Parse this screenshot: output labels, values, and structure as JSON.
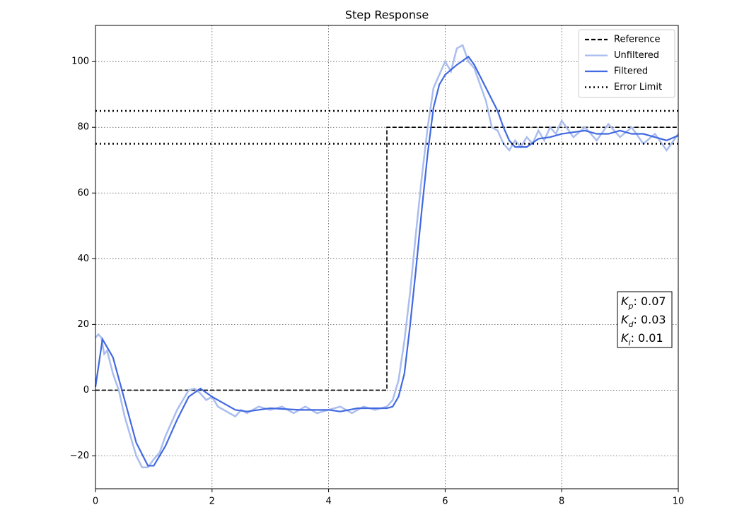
{
  "chart_data": {
    "type": "line",
    "title": "Step Response",
    "xlim": [
      0,
      10
    ],
    "ylim": [
      -30,
      111
    ],
    "xticks": [
      0,
      2,
      4,
      6,
      8,
      10
    ],
    "yticks": [
      {
        "value": -20,
        "label": "−20"
      },
      0,
      20,
      40,
      60,
      80,
      100
    ],
    "grid": true,
    "legend": "upper right",
    "series": [
      {
        "name": "Reference",
        "color": "#000000",
        "style": "dashed",
        "x": [
          0,
          5,
          5,
          10
        ],
        "values": [
          0,
          0,
          80,
          80
        ]
      },
      {
        "name": "Unfiltered",
        "color": "#aabdee",
        "style": "solid",
        "x": [
          0,
          0.05,
          0.1,
          0.15,
          0.2,
          0.3,
          0.4,
          0.5,
          0.6,
          0.7,
          0.8,
          0.9,
          1.0,
          1.1,
          1.2,
          1.3,
          1.4,
          1.5,
          1.6,
          1.7,
          1.8,
          1.9,
          2.0,
          2.1,
          2.2,
          2.3,
          2.4,
          2.5,
          2.6,
          2.8,
          3.0,
          3.2,
          3.4,
          3.6,
          3.8,
          4.0,
          4.2,
          4.4,
          4.6,
          4.8,
          5.0,
          5.1,
          5.2,
          5.3,
          5.4,
          5.5,
          5.6,
          5.7,
          5.8,
          5.9,
          6.0,
          6.1,
          6.2,
          6.3,
          6.4,
          6.5,
          6.6,
          6.7,
          6.8,
          6.9,
          7.0,
          7.1,
          7.2,
          7.3,
          7.4,
          7.5,
          7.6,
          7.7,
          7.8,
          7.9,
          8.0,
          8.2,
          8.4,
          8.6,
          8.8,
          9.0,
          9.2,
          9.4,
          9.6,
          9.8,
          10
        ],
        "values": [
          16,
          17,
          16,
          11,
          12,
          5,
          0,
          -8,
          -14,
          -20,
          -23.5,
          -23.5,
          -21,
          -19,
          -14,
          -10,
          -6,
          -3,
          0,
          0.5,
          -1,
          -3,
          -2,
          -5,
          -6,
          -7,
          -8,
          -6,
          -7,
          -5,
          -6,
          -5,
          -7,
          -5,
          -7,
          -6,
          -5,
          -7,
          -5,
          -6,
          -5,
          -3,
          3,
          15,
          30,
          48,
          65,
          80,
          92,
          96,
          100,
          97,
          104,
          105,
          100,
          98,
          93,
          88,
          80,
          79,
          75,
          73,
          76,
          74,
          77,
          75,
          79,
          76,
          80,
          78,
          82,
          77,
          80,
          76,
          81,
          77,
          80,
          75,
          78,
          73,
          78
        ]
      },
      {
        "name": "Filtered",
        "color": "#4169e1",
        "style": "solid",
        "x": [
          0,
          0.12,
          0.3,
          0.5,
          0.7,
          0.9,
          1.0,
          1.2,
          1.4,
          1.6,
          1.8,
          2.0,
          2.2,
          2.4,
          2.6,
          2.8,
          3.0,
          3.5,
          4.0,
          4.2,
          4.5,
          5.0,
          5.1,
          5.2,
          5.3,
          5.4,
          5.5,
          5.6,
          5.7,
          5.8,
          5.9,
          6.0,
          6.2,
          6.4,
          6.5,
          6.7,
          6.9,
          7.0,
          7.1,
          7.2,
          7.4,
          7.6,
          7.8,
          8.0,
          8.2,
          8.4,
          8.6,
          8.8,
          9.0,
          9.2,
          9.4,
          9.6,
          9.8,
          10
        ],
        "values": [
          1,
          15.5,
          10,
          -3,
          -16,
          -23,
          -23,
          -17,
          -9,
          -2,
          0.5,
          -2,
          -4,
          -6,
          -6.5,
          -6,
          -5.5,
          -6,
          -6,
          -6.5,
          -5.5,
          -5.5,
          -5,
          -2,
          5,
          20,
          37,
          55,
          72,
          86,
          93,
          96,
          99,
          101.5,
          99,
          92,
          85,
          80,
          76,
          74,
          74,
          76.5,
          77,
          78,
          78.5,
          79,
          78,
          78,
          79,
          78,
          78,
          77,
          76,
          77.5
        ]
      },
      {
        "name": "Error Limit",
        "color": "#000000",
        "style": "dotted",
        "kind": "hline",
        "values": [
          85,
          75
        ]
      }
    ],
    "annotations": [
      {
        "symbol": "K",
        "subscript": "p",
        "text": ": 0.07"
      },
      {
        "symbol": "K",
        "subscript": "d",
        "text": ": 0.03"
      },
      {
        "symbol": "K",
        "subscript": "i",
        "text": ": 0.01"
      }
    ]
  }
}
